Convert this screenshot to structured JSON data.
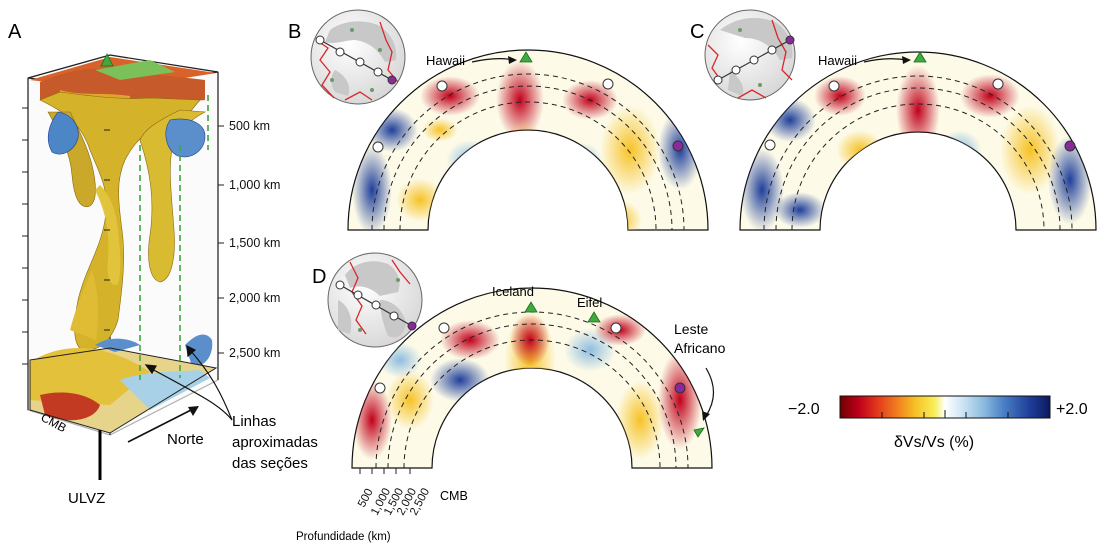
{
  "panels": {
    "a": {
      "letter": "A"
    },
    "b": {
      "letter": "B",
      "hotspot_label": "Hawaii"
    },
    "c": {
      "letter": "C",
      "hotspot_label": "Hawaii"
    },
    "d": {
      "letter": "D",
      "hotspot_labels": [
        "Iceland",
        "Eifel",
        "Leste",
        "Africano"
      ]
    }
  },
  "depth_scale": [
    "500 km",
    "1,000 km",
    "1,500 km",
    "2,000 km",
    "2,500 km"
  ],
  "block_labels": {
    "cmb": "CMB",
    "ulvz": "ULVZ",
    "north": "Norte",
    "section_lines": [
      "Linhas",
      "aproximadas",
      "das seções"
    ]
  },
  "section_axis": {
    "ticks": [
      "500",
      "1,000",
      "1,500",
      "2,000",
      "2,500"
    ],
    "cmb": "CMB",
    "title": "Profundidade (km)"
  },
  "colorbar": {
    "min_label": "−2.0",
    "max_label": "+2.0",
    "units_label": "δVs/Vs (%)",
    "stops": [
      "#6e0000",
      "#c0001a",
      "#e23a1c",
      "#f07d1f",
      "#f6c226",
      "#f7ee5a",
      "#ffffff",
      "#cfe6f5",
      "#8fbde0",
      "#4a7fc4",
      "#1f3f9b",
      "#0c1a5e"
    ]
  },
  "colors": {
    "hotspot": "#3faa3f",
    "marker_purple": "#8a2a9a",
    "plate_boundary": "#d9262a",
    "land": "#c8c8c8",
    "section_line": "#3fa83f"
  }
}
